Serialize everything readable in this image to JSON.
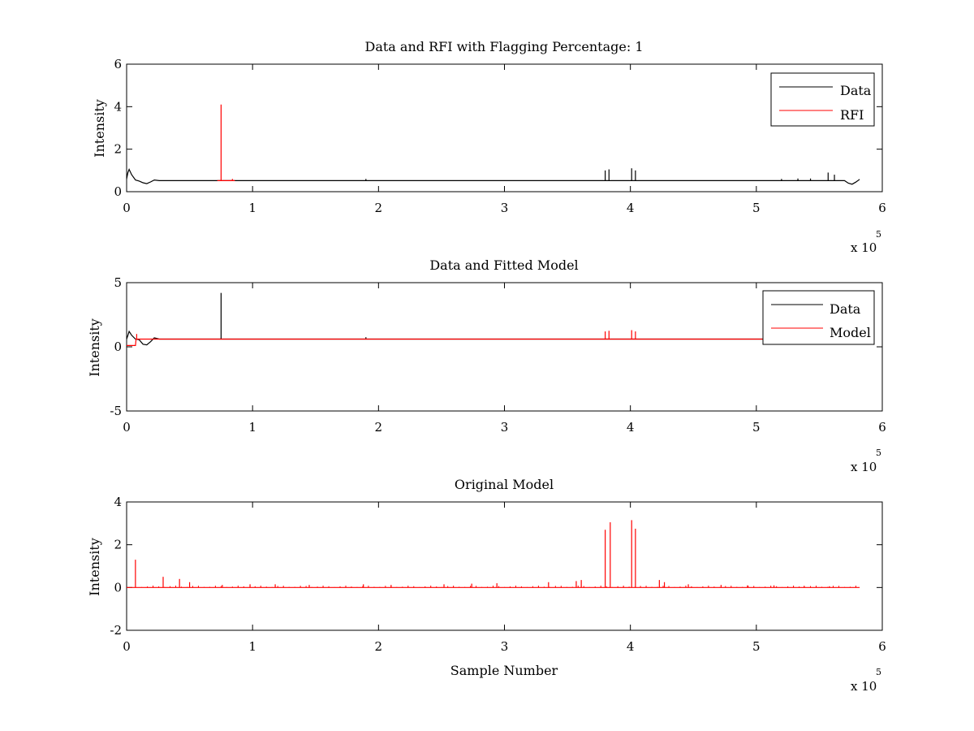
{
  "chart_data": [
    {
      "type": "line",
      "title": "Data and RFI with Flagging Percentage: 1",
      "xlabel": "",
      "ylabel": "Intensity",
      "xlim": [
        0,
        6
      ],
      "ylim": [
        0,
        6
      ],
      "x_ticks": [
        "0",
        "1",
        "2",
        "3",
        "4",
        "5",
        "6"
      ],
      "y_ticks": [
        "0",
        "2",
        "4",
        "6"
      ],
      "x_multiplier": "x 10",
      "x_multiplier_exp": "5",
      "legend": {
        "entries": [
          "Data",
          "RFI"
        ],
        "placement": "top-right"
      },
      "series": [
        {
          "name": "Data",
          "color": "#000000",
          "baseline": [
            [
              0,
              0.6
            ],
            [
              0.01,
              0.9
            ],
            [
              0.02,
              1.05
            ],
            [
              0.04,
              0.8
            ],
            [
              0.07,
              0.55
            ],
            [
              0.1,
              0.5
            ],
            [
              0.13,
              0.42
            ],
            [
              0.16,
              0.38
            ],
            [
              0.19,
              0.46
            ],
            [
              0.22,
              0.55
            ],
            [
              0.26,
              0.52
            ],
            [
              0.3,
              0.52
            ],
            [
              5.5,
              0.52
            ],
            [
              5.7,
              0.52
            ],
            [
              5.73,
              0.4
            ],
            [
              5.76,
              0.35
            ],
            [
              5.79,
              0.45
            ],
            [
              5.82,
              0.58
            ]
          ],
          "spikes": [
            [
              3.8,
              1.0
            ],
            [
              3.83,
              1.05
            ],
            [
              4.01,
              1.1
            ],
            [
              4.04,
              1.0
            ],
            [
              5.57,
              0.9
            ],
            [
              5.62,
              0.8
            ],
            [
              1.9,
              0.6
            ],
            [
              5.2,
              0.6
            ],
            [
              5.33,
              0.62
            ],
            [
              5.43,
              0.62
            ]
          ]
        },
        {
          "name": "RFI",
          "color": "#ff0000",
          "baseline": [
            [
              0.72,
              0.52
            ],
            [
              0.86,
              0.52
            ]
          ],
          "spikes": [
            [
              0.75,
              4.1
            ],
            [
              0.84,
              0.6
            ]
          ]
        }
      ]
    },
    {
      "type": "line",
      "title": "Data and Fitted Model",
      "xlabel": "",
      "ylabel": "Intensity",
      "xlim": [
        0,
        6
      ],
      "ylim": [
        -5,
        5
      ],
      "x_ticks": [
        "0",
        "1",
        "2",
        "3",
        "4",
        "5",
        "6"
      ],
      "y_ticks": [
        "-5",
        "0",
        "5"
      ],
      "x_multiplier": "x 10",
      "x_multiplier_exp": "5",
      "legend": {
        "entries": [
          "Data",
          "Model"
        ],
        "placement": "top-right"
      },
      "series": [
        {
          "name": "Data",
          "color": "#000000",
          "baseline": [
            [
              0,
              0.6
            ],
            [
              0.01,
              0.9
            ],
            [
              0.02,
              1.2
            ],
            [
              0.04,
              0.9
            ],
            [
              0.07,
              0.6
            ],
            [
              0.1,
              0.55
            ],
            [
              0.13,
              0.2
            ],
            [
              0.16,
              0.15
            ],
            [
              0.19,
              0.4
            ],
            [
              0.22,
              0.7
            ],
            [
              0.26,
              0.6
            ],
            [
              0.3,
              0.6
            ],
            [
              5.82,
              0.6
            ]
          ],
          "spikes": [
            [
              0.75,
              4.2
            ],
            [
              1.9,
              0.75
            ]
          ]
        },
        {
          "name": "Model",
          "color": "#ff0000",
          "baseline": [
            [
              0,
              0.1
            ],
            [
              0.07,
              0.1
            ],
            [
              0.075,
              0.6
            ],
            [
              5.82,
              0.6
            ]
          ],
          "spikes": [
            [
              0.08,
              1.0
            ],
            [
              3.8,
              1.2
            ],
            [
              3.83,
              1.25
            ],
            [
              4.01,
              1.3
            ],
            [
              4.04,
              1.2
            ]
          ]
        }
      ]
    },
    {
      "type": "line",
      "title": "Original Model",
      "xlabel": "Sample Number",
      "ylabel": "Intensity",
      "xlim": [
        0,
        6
      ],
      "ylim": [
        -2,
        4
      ],
      "x_ticks": [
        "0",
        "1",
        "2",
        "3",
        "4",
        "5",
        "6"
      ],
      "y_ticks": [
        "-2",
        "0",
        "2",
        "4"
      ],
      "x_multiplier": "x 10",
      "x_multiplier_exp": "5",
      "legend": null,
      "series": [
        {
          "name": "",
          "color": "#ff0000",
          "baseline": [
            [
              0,
              0
            ],
            [
              5.82,
              0
            ]
          ],
          "spikes": [
            [
              0.07,
              1.3
            ],
            [
              0.29,
              0.5
            ],
            [
              0.42,
              0.4
            ],
            [
              0.5,
              0.25
            ],
            [
              0.76,
              0.12
            ],
            [
              0.98,
              0.15
            ],
            [
              1.18,
              0.15
            ],
            [
              1.45,
              0.12
            ],
            [
              1.88,
              0.15
            ],
            [
              2.1,
              0.12
            ],
            [
              2.52,
              0.15
            ],
            [
              2.74,
              0.18
            ],
            [
              2.94,
              0.2
            ],
            [
              3.35,
              0.25
            ],
            [
              3.57,
              0.3
            ],
            [
              3.61,
              0.35
            ],
            [
              3.8,
              2.7
            ],
            [
              3.84,
              3.05
            ],
            [
              4.01,
              3.15
            ],
            [
              4.04,
              2.75
            ],
            [
              4.23,
              0.35
            ],
            [
              4.27,
              0.25
            ],
            [
              4.46,
              0.15
            ],
            [
              4.72,
              0.12
            ],
            [
              4.93,
              0.1
            ],
            [
              5.14,
              0.1
            ],
            [
              5.38,
              0.08
            ],
            [
              5.58,
              0.06
            ]
          ]
        }
      ]
    }
  ]
}
